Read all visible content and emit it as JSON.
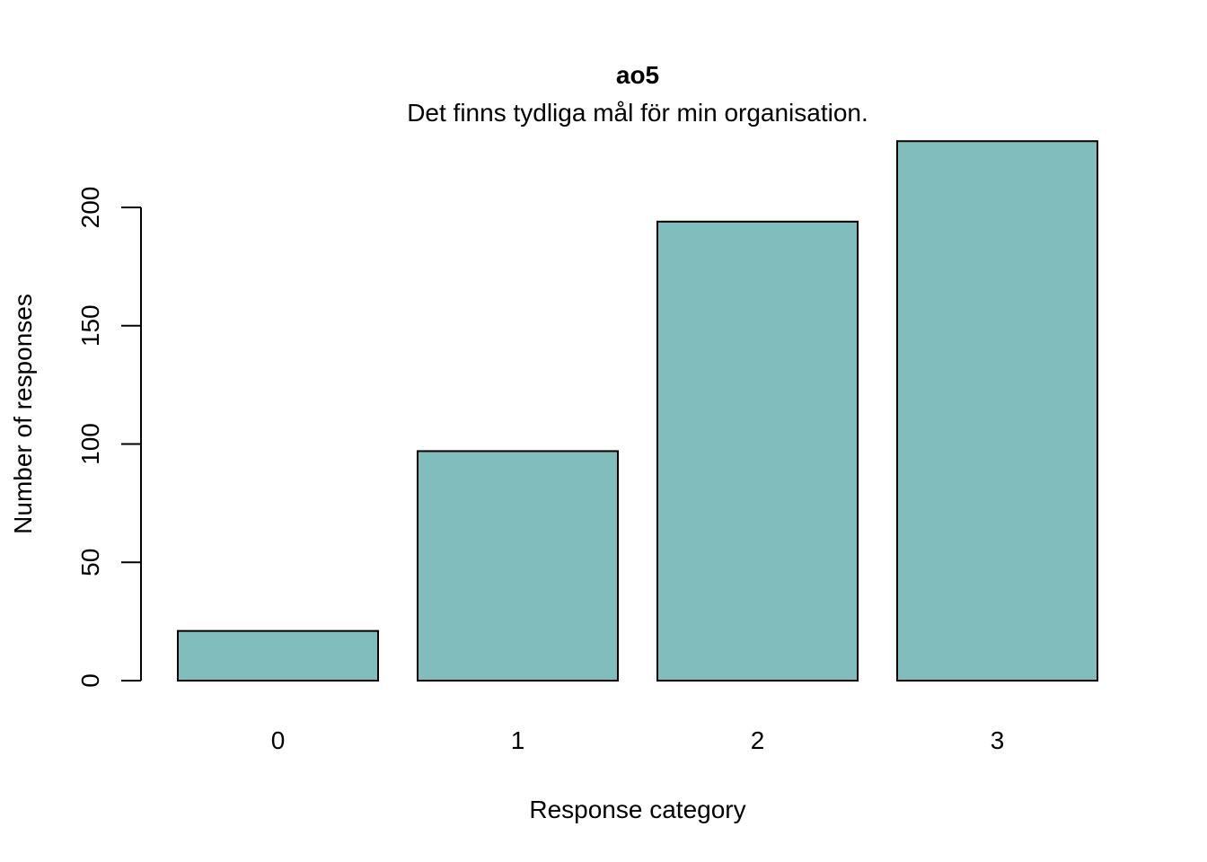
{
  "chart_data": {
    "type": "bar",
    "title": "ao5",
    "subtitle": "Det finns tydliga mål för min organisation.",
    "xlabel": "Response category",
    "ylabel": "Number of responses",
    "categories": [
      "0",
      "1",
      "2",
      "3"
    ],
    "values": [
      21,
      97,
      194,
      228
    ],
    "ylim": [
      0,
      228
    ],
    "yticks": [
      0,
      50,
      100,
      150,
      200
    ],
    "bar_color": "#80BDBC",
    "grid": false,
    "legend": "none"
  }
}
